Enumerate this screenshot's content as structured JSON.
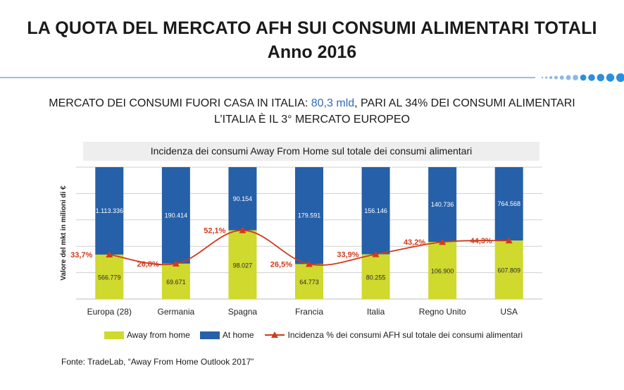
{
  "header": {
    "title_line1": "LA QUOTA DEL MERCATO AFH SUI CONSUMI ALIMENTARI TOTALI",
    "title_line2": "Anno 2016"
  },
  "subtitle": {
    "line1_prefix": "MERCATO DEI CONSUMI FUORI CASA IN ITALIA: ",
    "line1_highlight": "80,3 mld",
    "line1_suffix": ", PARI AL 34% DEI CONSUMI ALIMENTARI",
    "line2": "L’ITALIA È IL 3° MERCATO EUROPEO",
    "highlight_color": "#2f6db5"
  },
  "chart_data": {
    "type": "bar",
    "title": "Incidenza dei consumi Away From Home sul totale dei consumi alimentari",
    "ylabel": "Valore del mkt in milioni di €",
    "xlabel": "",
    "stacked": true,
    "normalized_100": true,
    "categories": [
      "Europa (28)",
      "Germania",
      "Spagna",
      "Francia",
      "Italia",
      "Regno Unito",
      "USA"
    ],
    "series": [
      {
        "name": "Away from home",
        "color": "#cfd92e",
        "values": [
          566.779,
          69.671,
          98.027,
          64.773,
          80.255,
          106.9,
          607.809
        ],
        "labels": [
          "566.779",
          "69.671",
          "98.027",
          "64.773",
          "80.255",
          "106.900",
          "607.809"
        ]
      },
      {
        "name": "At home",
        "color": "#2660a8",
        "values": [
          1113.336,
          190.414,
          90.154,
          179.591,
          156.146,
          140.736,
          764.568
        ],
        "labels": [
          "1.113.336",
          "190.414",
          "90.154",
          "179.591",
          "156.146",
          "140.736",
          "764.568"
        ]
      }
    ],
    "line_series": {
      "name": "Incidenza % dei consumi AFH sul totale dei consumi alimentari",
      "color": "#d03a1c",
      "values": [
        33.7,
        26.8,
        52.1,
        26.5,
        33.9,
        43.2,
        44.3
      ],
      "labels": [
        "33,7%",
        "26,8%",
        "52,1%",
        "26,5%",
        "33,9%",
        "43,2%",
        "44,3%"
      ]
    },
    "grid": true,
    "legend_position": "bottom"
  },
  "source": "Fonte: TradeLab, “Away From Home Outlook 2017”"
}
